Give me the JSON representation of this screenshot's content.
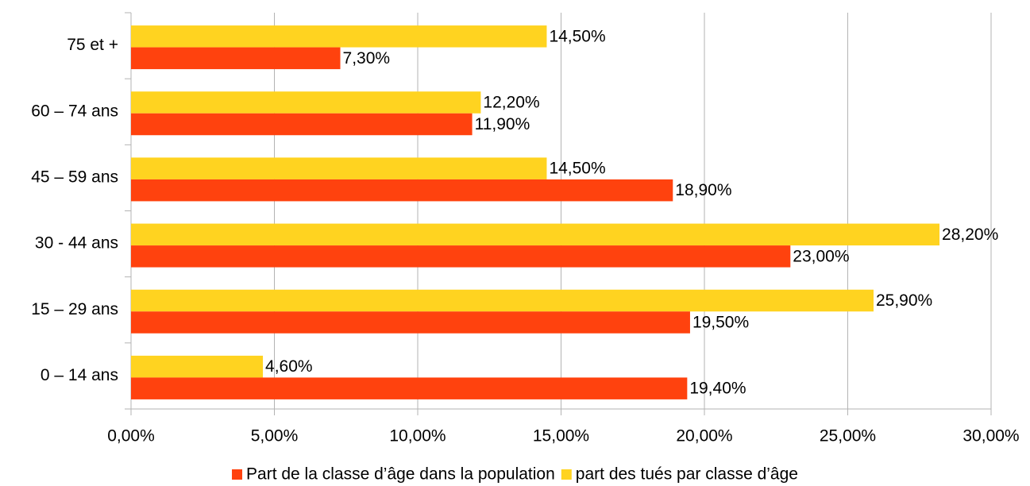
{
  "chart_data": {
    "type": "hbar",
    "categories": [
      "0 – 14 ans",
      "15 – 29 ans",
      "30 - 44 ans",
      "45 – 59 ans",
      "60 – 74 ans",
      "75 et +"
    ],
    "series": [
      {
        "name": "Part de la classe d’âge dans la population",
        "color": "#ff420e",
        "values": [
          19.4,
          19.5,
          23.0,
          18.9,
          11.9,
          7.3
        ],
        "value_labels": [
          "19,40%",
          "19,50%",
          "23,00%",
          "18,90%",
          "11,90%",
          "7,30%"
        ]
      },
      {
        "name": "part des tués par classe d’âge",
        "color": "#ffd320",
        "values": [
          4.6,
          25.9,
          28.2,
          14.5,
          12.2,
          14.5
        ],
        "value_labels": [
          "4,60%",
          "25,90%",
          "28,20%",
          "14,50%",
          "12,20%",
          "14,50%"
        ]
      }
    ],
    "xlim": [
      0,
      30
    ],
    "xticks": [
      {
        "value": 0,
        "label": "0,00%"
      },
      {
        "value": 5,
        "label": "5,00%"
      },
      {
        "value": 10,
        "label": "10,00%"
      },
      {
        "value": 15,
        "label": "15,00%"
      },
      {
        "value": 20,
        "label": "20,00%"
      },
      {
        "value": 25,
        "label": "25,00%"
      },
      {
        "value": 30,
        "label": "30,00%"
      }
    ],
    "grid": true,
    "legend": "bottom"
  }
}
